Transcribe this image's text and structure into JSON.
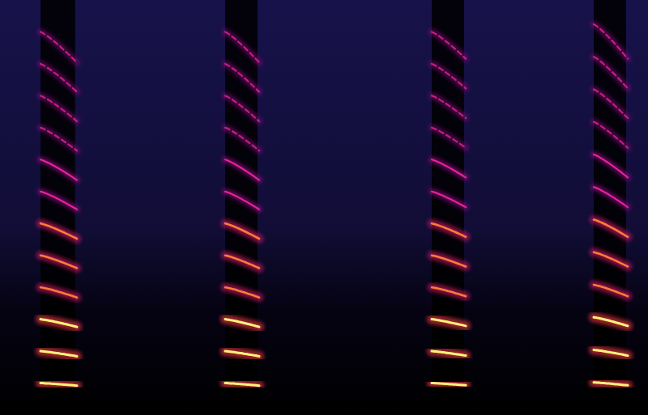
{
  "chart_data": {
    "type": "spectrogram",
    "tick_labels": false,
    "xlim": [
      0,
      8
    ],
    "ylim": [
      0,
      13
    ],
    "calls": [
      {
        "start": 0.5,
        "end": 0.95,
        "f_start": 1.0,
        "f_end": 0.92,
        "harmonics": 12
      },
      {
        "start": 2.78,
        "end": 3.2,
        "f_start": 1.0,
        "f_end": 0.92,
        "harmonics": 12
      },
      {
        "start": 5.33,
        "end": 5.75,
        "f_start": 1.0,
        "f_end": 0.93,
        "harmonics": 12
      },
      {
        "start": 7.33,
        "end": 7.75,
        "f_start": 1.02,
        "f_end": 0.93,
        "harmonics": 12
      }
    ]
  }
}
